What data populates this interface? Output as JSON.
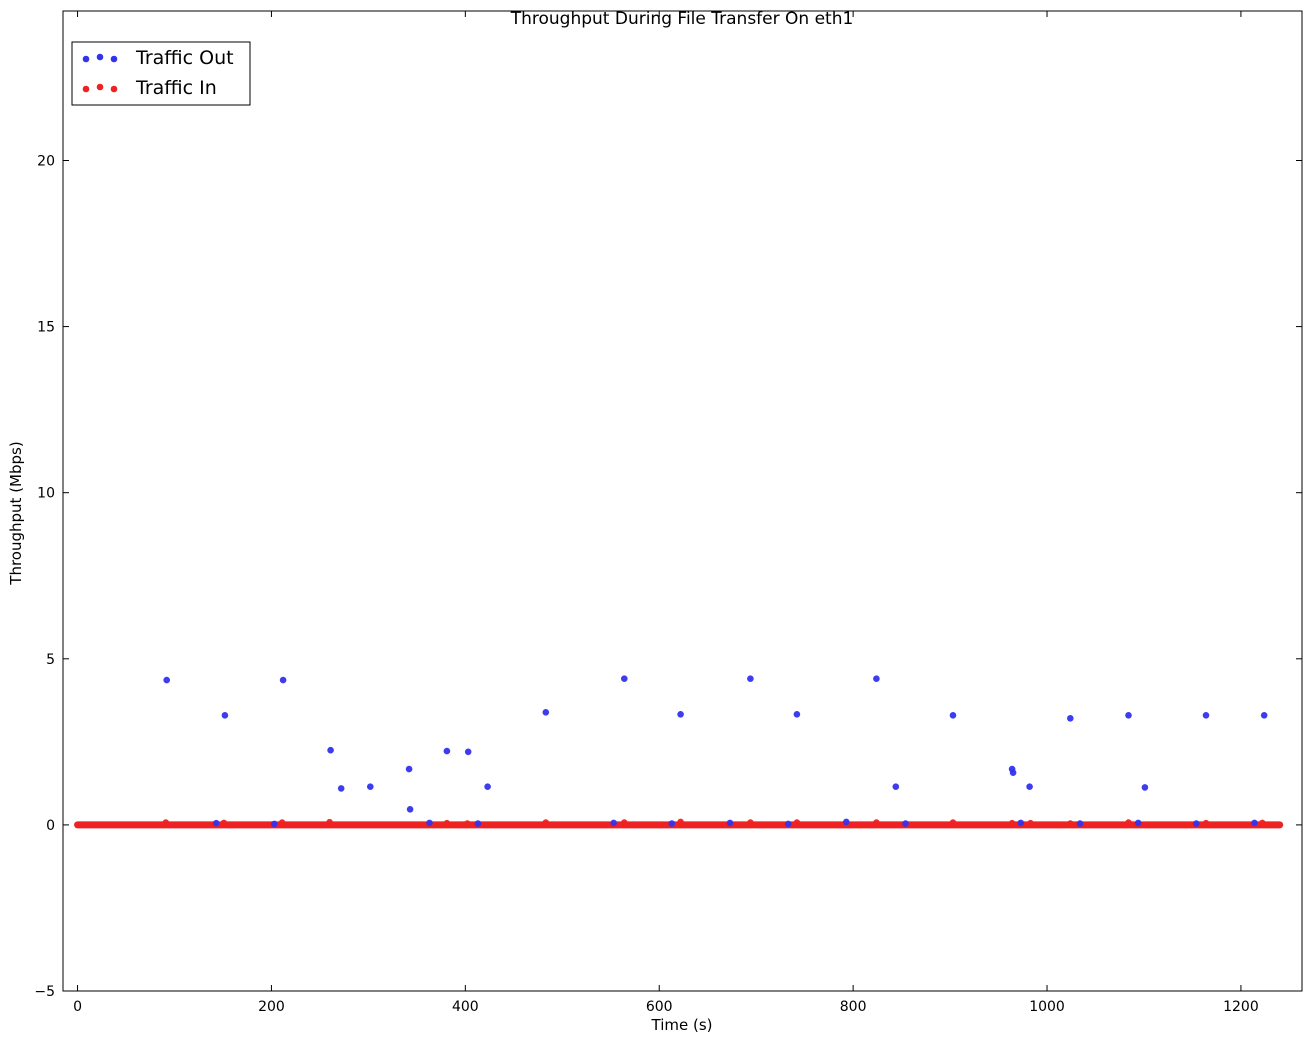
{
  "chart_data": {
    "type": "scatter",
    "title": "Throughput During File Transfer On eth1",
    "xlabel": "Time (s)",
    "ylabel": "Throughput (Mbps)",
    "xlim": [
      -15,
      1263
    ],
    "ylim": [
      -5,
      24.5
    ],
    "xticks": [
      0,
      200,
      400,
      600,
      800,
      1000,
      1200
    ],
    "yticks": [
      -5,
      0,
      5,
      10,
      15,
      20
    ],
    "grid": false,
    "legend_position": "top-left",
    "baseline": {
      "x_start": 0,
      "x_end": 1240,
      "y": 0
    },
    "series": [
      {
        "name": "Traffic Out",
        "color": "#3333ee",
        "points": [
          [
            92,
            4.36
          ],
          [
            152,
            3.3
          ],
          [
            212,
            4.36
          ],
          [
            261,
            2.25
          ],
          [
            272,
            1.1
          ],
          [
            302,
            1.15
          ],
          [
            342,
            1.68
          ],
          [
            343,
            0.47
          ],
          [
            381,
            2.22
          ],
          [
            403,
            2.2
          ],
          [
            423,
            1.15
          ],
          [
            483,
            3.39
          ],
          [
            564,
            4.4
          ],
          [
            622,
            3.33
          ],
          [
            694,
            4.4
          ],
          [
            742,
            3.33
          ],
          [
            824,
            4.4
          ],
          [
            844,
            1.15
          ],
          [
            903,
            3.3
          ],
          [
            964,
            1.68
          ],
          [
            965,
            1.57
          ],
          [
            982,
            1.15
          ],
          [
            1024,
            3.21
          ],
          [
            1084,
            3.3
          ],
          [
            1101,
            1.13
          ],
          [
            1164,
            3.3
          ],
          [
            1224,
            3.3
          ],
          [
            143,
            0.05
          ],
          [
            203,
            0.03
          ],
          [
            363,
            0.06
          ],
          [
            413,
            0.04
          ],
          [
            553,
            0.06
          ],
          [
            613,
            0.04
          ],
          [
            673,
            0.06
          ],
          [
            733,
            0.03
          ],
          [
            793,
            0.09
          ],
          [
            854,
            0.04
          ],
          [
            973,
            0.06
          ],
          [
            1034,
            0.04
          ],
          [
            1094,
            0.06
          ],
          [
            1154,
            0.04
          ],
          [
            1214,
            0.06
          ]
        ]
      },
      {
        "name": "Traffic In",
        "color": "#ee2222",
        "points": [
          [
            91,
            0.07
          ],
          [
            151,
            0.06
          ],
          [
            211,
            0.07
          ],
          [
            260,
            0.08
          ],
          [
            381,
            0.05
          ],
          [
            402,
            0.04
          ],
          [
            483,
            0.07
          ],
          [
            564,
            0.07
          ],
          [
            622,
            0.09
          ],
          [
            694,
            0.07
          ],
          [
            742,
            0.07
          ],
          [
            824,
            0.07
          ],
          [
            903,
            0.07
          ],
          [
            964,
            0.05
          ],
          [
            983,
            0.05
          ],
          [
            1024,
            0.04
          ],
          [
            1084,
            0.07
          ],
          [
            1164,
            0.05
          ],
          [
            1222,
            0.06
          ]
        ]
      }
    ]
  }
}
